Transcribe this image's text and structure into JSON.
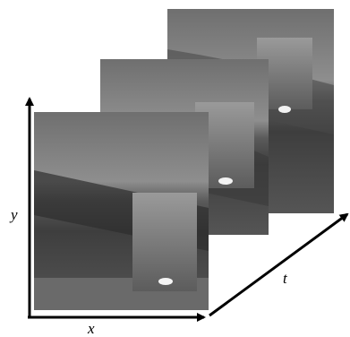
{
  "axes": {
    "x": "x",
    "y": "y",
    "t": "t"
  }
}
